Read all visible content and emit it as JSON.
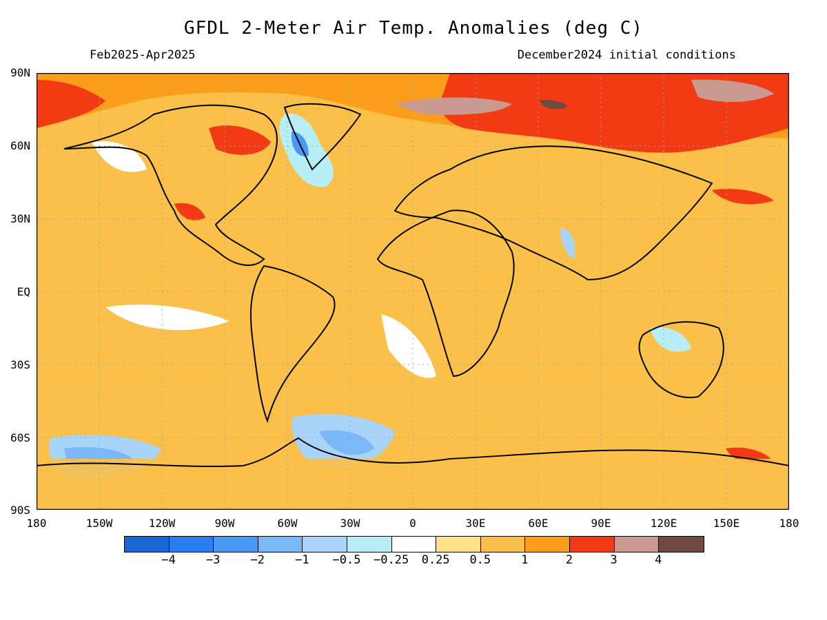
{
  "title": "GFDL 2-Meter Air Temp. Anomalies (deg C)",
  "period": "Feb2025-Apr2025",
  "init": "December2024 initial conditions",
  "lat_labels": [
    "90N",
    "60N",
    "30N",
    "EQ",
    "30S",
    "60S",
    "90S"
  ],
  "lon_labels": [
    "180",
    "150W",
    "120W",
    "90W",
    "60W",
    "30W",
    "0",
    "30E",
    "60E",
    "90E",
    "120E",
    "150E",
    "180"
  ],
  "colorbar": {
    "colors": [
      "#1a66d6",
      "#2a7ff0",
      "#4a9af5",
      "#7ab8f7",
      "#a8d4f9",
      "#b8eef7",
      "#ffffff",
      "#fde28a",
      "#fbc04a",
      "#fa9e1c",
      "#f23b14",
      "#c89a90",
      "#6e4a40"
    ],
    "labels": [
      "−4",
      "−3",
      "−2",
      "−1",
      "−0.5",
      "−0.25",
      "0.25",
      "0.5",
      "1",
      "2",
      "3",
      "4"
    ]
  }
}
